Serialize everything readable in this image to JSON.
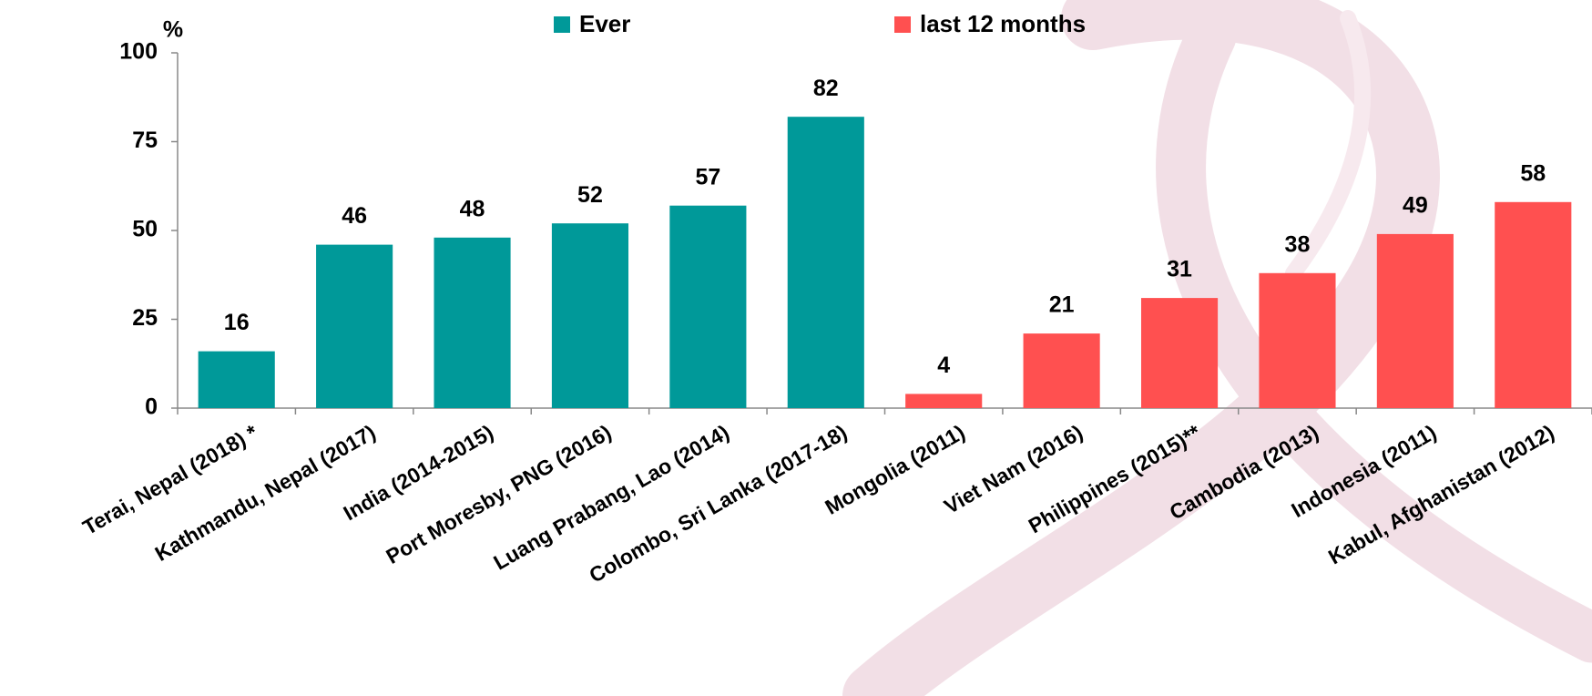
{
  "chart_data": {
    "type": "bar",
    "y_label": "%",
    "categories": [
      "Terai, Nepal (2018) *",
      "Kathmandu, Nepal (2017)",
      "India (2014-2015)",
      "Port Moresby, PNG (2016)",
      "Luang Prabang, Lao (2014)",
      "Colombo, Sri Lanka (2017-18)",
      "Mongolia (2011)",
      "Viet Nam (2016)",
      "Philippines (2015)**",
      "Cambodia (2013)",
      "Indonesia (2011)",
      "Kabul, Afghanistan (2012)"
    ],
    "series": [
      {
        "name": "Ever",
        "color": "#009999",
        "values": [
          16,
          46,
          48,
          52,
          57,
          82,
          null,
          null,
          null,
          null,
          null,
          null
        ]
      },
      {
        "name": "last 12 months",
        "color": "#ff5050",
        "values": [
          null,
          null,
          null,
          null,
          null,
          null,
          4,
          21,
          31,
          38,
          49,
          58
        ]
      }
    ],
    "ylim": [
      0,
      100
    ],
    "yticks": [
      0,
      25,
      50,
      75,
      100
    ],
    "grid": false
  }
}
